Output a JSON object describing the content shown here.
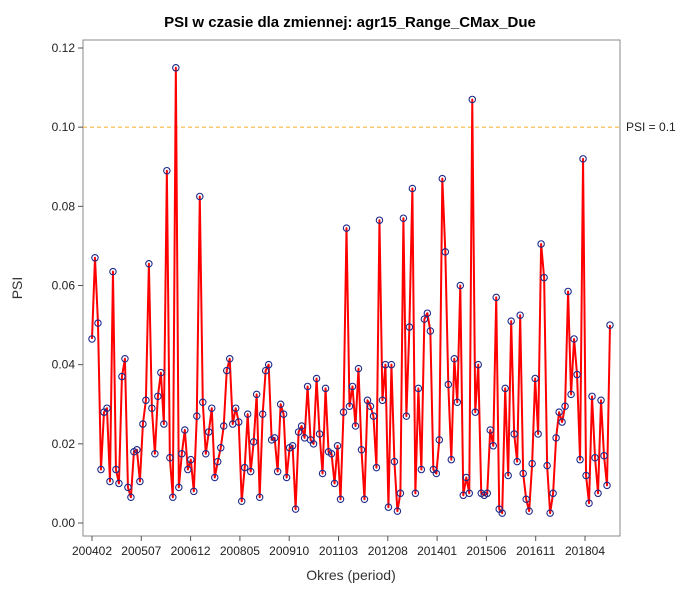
{
  "chart_data": {
    "type": "line",
    "title": "PSI w czasie dla zmiennej: agr15_Range_CMax_Due",
    "xlabel": "Okres (period)",
    "ylabel": "PSI",
    "ylim": [
      0,
      0.12
    ],
    "yticks": [
      "0.00",
      "0.02",
      "0.04",
      "0.06",
      "0.08",
      "0.10",
      "0.12"
    ],
    "xticks": [
      "200402",
      "200507",
      "200612",
      "200805",
      "200910",
      "201103",
      "201208",
      "201401",
      "201506",
      "201611",
      "201804"
    ],
    "grid": false,
    "reference_line": {
      "value": 0.1,
      "label": "PSI = 0.1",
      "color": "#f4b942"
    },
    "series": [
      {
        "line_color": "#ff0000",
        "marker_color": "#1f2a8a",
        "values": [
          0.0465,
          0.067,
          0.0505,
          0.0135,
          0.028,
          0.029,
          0.0105,
          0.0635,
          0.0135,
          0.01,
          0.037,
          0.0415,
          0.009,
          0.0065,
          0.018,
          0.0185,
          0.0105,
          0.025,
          0.031,
          0.0655,
          0.029,
          0.0175,
          0.032,
          0.038,
          0.025,
          0.089,
          0.0165,
          0.0065,
          0.115,
          0.009,
          0.0175,
          0.0235,
          0.0135,
          0.016,
          0.008,
          0.027,
          0.0825,
          0.0305,
          0.0175,
          0.023,
          0.029,
          0.0115,
          0.0155,
          0.019,
          0.0245,
          0.0385,
          0.0415,
          0.025,
          0.029,
          0.0255,
          0.0055,
          0.014,
          0.0275,
          0.013,
          0.0205,
          0.0325,
          0.0065,
          0.0275,
          0.0385,
          0.04,
          0.021,
          0.0215,
          0.013,
          0.03,
          0.0275,
          0.0115,
          0.019,
          0.0195,
          0.0035,
          0.023,
          0.0245,
          0.0215,
          0.0345,
          0.021,
          0.02,
          0.0365,
          0.0225,
          0.0125,
          0.034,
          0.018,
          0.0175,
          0.01,
          0.0195,
          0.006,
          0.028,
          0.0745,
          0.0295,
          0.0345,
          0.0245,
          0.039,
          0.0185,
          0.006,
          0.031,
          0.0295,
          0.027,
          0.014,
          0.0765,
          0.031,
          0.04,
          0.004,
          0.04,
          0.0155,
          0.003,
          0.0075,
          0.077,
          0.027,
          0.0495,
          0.0845,
          0.0075,
          0.034,
          0.0135,
          0.0515,
          0.053,
          0.0485,
          0.0135,
          0.0125,
          0.021,
          0.087,
          0.0685,
          0.035,
          0.016,
          0.0415,
          0.0305,
          0.06,
          0.007,
          0.0115,
          0.0075,
          0.107,
          0.028,
          0.04,
          0.0075,
          0.007,
          0.0075,
          0.0235,
          0.0195,
          0.057,
          0.0035,
          0.0025,
          0.034,
          0.012,
          0.051,
          0.0225,
          0.0155,
          0.0525,
          0.0125,
          0.006,
          0.003,
          0.015,
          0.0365,
          0.0225,
          0.0705,
          0.062,
          0.0145,
          0.0025,
          0.0075,
          0.0215,
          0.028,
          0.0255,
          0.0295,
          0.0585,
          0.0325,
          0.0465,
          0.0375,
          0.016,
          0.092,
          0.012,
          0.005,
          0.032,
          0.0165,
          0.0075,
          0.031,
          0.017,
          0.0095,
          0.05
        ]
      }
    ]
  }
}
